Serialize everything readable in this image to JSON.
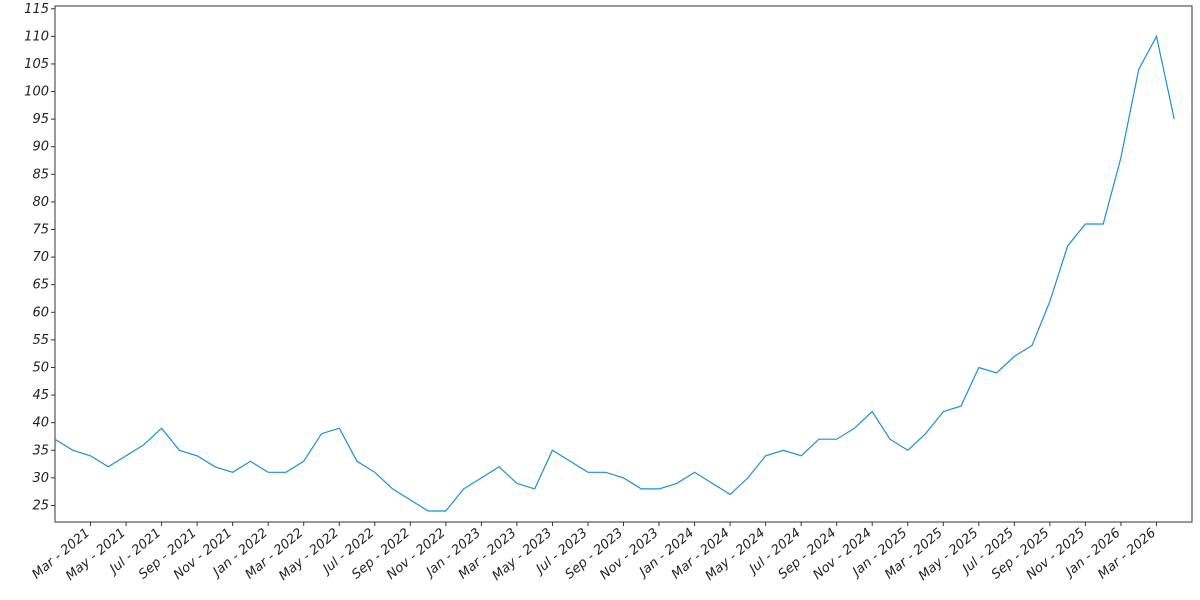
{
  "chart_data": {
    "type": "line",
    "x": [
      "2021-01",
      "2021-02",
      "2021-03",
      "2021-04",
      "2021-05",
      "2021-06",
      "2021-07",
      "2021-08",
      "2021-09",
      "2021-10",
      "2021-11",
      "2021-12",
      "2022-01",
      "2022-02",
      "2022-03",
      "2022-04",
      "2022-05",
      "2022-06",
      "2022-07",
      "2022-08",
      "2022-09",
      "2022-10",
      "2022-11",
      "2022-12",
      "2023-01",
      "2023-02",
      "2023-03",
      "2023-04",
      "2023-05",
      "2023-06",
      "2023-07",
      "2023-08",
      "2023-09",
      "2023-10",
      "2023-11",
      "2023-12",
      "2024-01",
      "2024-02",
      "2024-03",
      "2024-04",
      "2024-05",
      "2024-06",
      "2024-07",
      "2024-08",
      "2024-09",
      "2024-10",
      "2024-11",
      "2024-12",
      "2025-01",
      "2025-02",
      "2025-03",
      "2025-04",
      "2025-05",
      "2025-06",
      "2025-07",
      "2025-08",
      "2025-09",
      "2025-10",
      "2025-11",
      "2025-12",
      "2026-01",
      "2026-02",
      "2026-03",
      "2026-04"
    ],
    "series": [
      {
        "color": "#1a8fd6",
        "values": [
          37,
          35,
          34,
          32,
          34,
          36,
          39,
          35,
          34,
          32,
          31,
          33,
          31,
          31,
          33,
          38,
          39,
          33,
          31,
          28,
          26,
          24,
          24,
          28,
          30,
          32,
          29,
          28,
          35,
          33,
          31,
          31,
          30,
          28,
          28,
          29,
          31,
          29,
          27,
          30,
          34,
          35,
          34,
          37,
          37,
          39,
          42,
          37,
          35,
          38,
          42,
          43,
          50,
          49,
          52,
          54,
          62,
          72,
          76,
          76,
          88,
          104,
          110,
          95
        ]
      }
    ],
    "xlim": [
      "2021-01",
      "2026-05"
    ],
    "xticks": [
      {
        "value": "2021-03",
        "label": "Mar - 2021"
      },
      {
        "value": "2021-05",
        "label": "May - 2021"
      },
      {
        "value": "2021-07",
        "label": "Jul - 2021"
      },
      {
        "value": "2021-09",
        "label": "Sep - 2021"
      },
      {
        "value": "2021-11",
        "label": "Nov - 2021"
      },
      {
        "value": "2022-01",
        "label": "Jan - 2022"
      },
      {
        "value": "2022-03",
        "label": "Mar - 2022"
      },
      {
        "value": "2022-05",
        "label": "May - 2022"
      },
      {
        "value": "2022-07",
        "label": "Jul - 2022"
      },
      {
        "value": "2022-09",
        "label": "Sep - 2022"
      },
      {
        "value": "2022-11",
        "label": "Nov - 2022"
      },
      {
        "value": "2023-01",
        "label": "Jan - 2023"
      },
      {
        "value": "2023-03",
        "label": "Mar - 2023"
      },
      {
        "value": "2023-05",
        "label": "May - 2023"
      },
      {
        "value": "2023-07",
        "label": "Jul - 2023"
      },
      {
        "value": "2023-09",
        "label": "Sep - 2023"
      },
      {
        "value": "2023-11",
        "label": "Nov - 2023"
      },
      {
        "value": "2024-01",
        "label": "Jan - 2024"
      },
      {
        "value": "2024-03",
        "label": "Mar - 2024"
      },
      {
        "value": "2024-05",
        "label": "May - 2024"
      },
      {
        "value": "2024-07",
        "label": "Jul - 2024"
      },
      {
        "value": "2024-09",
        "label": "Sep - 2024"
      },
      {
        "value": "2024-11",
        "label": "Nov - 2024"
      },
      {
        "value": "2025-01",
        "label": "Jan - 2025"
      },
      {
        "value": "2025-03",
        "label": "Mar - 2025"
      },
      {
        "value": "2025-05",
        "label": "May - 2025"
      },
      {
        "value": "2025-07",
        "label": "Jul - 2025"
      },
      {
        "value": "2025-09",
        "label": "Sep - 2025"
      },
      {
        "value": "2025-11",
        "label": "Nov - 2025"
      },
      {
        "value": "2026-01",
        "label": "Jan - 2026"
      },
      {
        "value": "2026-03",
        "label": "Mar - 2026"
      }
    ],
    "ylim": [
      22,
      115.5
    ],
    "yticks": [
      25,
      30,
      35,
      40,
      45,
      50,
      55,
      60,
      65,
      70,
      75,
      80,
      85,
      90,
      95,
      100,
      105,
      110,
      115
    ]
  }
}
